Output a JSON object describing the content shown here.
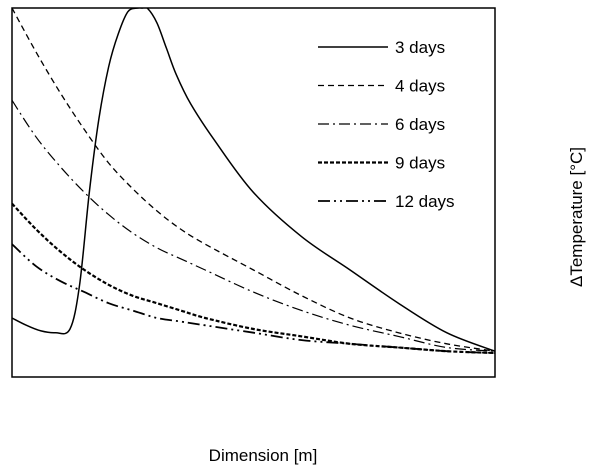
{
  "chart_data": {
    "type": "line",
    "title": "",
    "xlabel": "Dimension [m]",
    "ylabel": "ΔTemperature [°C]",
    "xlim": [
      0,
      1
    ],
    "ylim": [
      0,
      1
    ],
    "grid": false,
    "legend_position": "top-right",
    "colors": {
      "line": "#000000",
      "background": "#ffffff"
    },
    "series": [
      {
        "name": "3 days",
        "dash": "solid",
        "x": [
          0,
          0.03,
          0.06,
          0.09,
          0.12,
          0.14,
          0.16,
          0.18,
          0.2,
          0.22,
          0.24,
          0.26,
          0.27,
          0.28,
          0.3,
          0.32,
          0.34,
          0.37,
          0.42,
          0.5,
          0.6,
          0.7,
          0.8,
          0.9,
          1.0
        ],
        "y": [
          0.16,
          0.14,
          0.125,
          0.12,
          0.13,
          0.25,
          0.5,
          0.7,
          0.84,
          0.93,
          0.99,
          1.0,
          1.0,
          1.0,
          0.96,
          0.89,
          0.82,
          0.74,
          0.64,
          0.5,
          0.38,
          0.29,
          0.2,
          0.12,
          0.07
        ]
      },
      {
        "name": "4 days",
        "dash": "dashed",
        "x": [
          0,
          0.05,
          0.1,
          0.15,
          0.2,
          0.25,
          0.3,
          0.35,
          0.4,
          0.5,
          0.6,
          0.7,
          0.8,
          0.9,
          1.0
        ],
        "y": [
          1.0,
          0.88,
          0.77,
          0.67,
          0.58,
          0.51,
          0.45,
          0.4,
          0.36,
          0.29,
          0.22,
          0.16,
          0.12,
          0.09,
          0.07
        ]
      },
      {
        "name": "6 days",
        "dash": "dash-dot",
        "x": [
          0,
          0.05,
          0.1,
          0.15,
          0.2,
          0.25,
          0.3,
          0.35,
          0.4,
          0.5,
          0.6,
          0.7,
          0.8,
          0.9,
          1.0
        ],
        "y": [
          0.75,
          0.65,
          0.57,
          0.5,
          0.44,
          0.39,
          0.35,
          0.32,
          0.29,
          0.23,
          0.18,
          0.14,
          0.11,
          0.08,
          0.07
        ]
      },
      {
        "name": "9 days",
        "dash": "short-dash",
        "x": [
          0,
          0.05,
          0.1,
          0.15,
          0.2,
          0.25,
          0.3,
          0.35,
          0.4,
          0.5,
          0.6,
          0.7,
          0.8,
          0.9,
          1.0
        ],
        "y": [
          0.47,
          0.4,
          0.34,
          0.29,
          0.25,
          0.22,
          0.2,
          0.18,
          0.16,
          0.13,
          0.11,
          0.09,
          0.08,
          0.07,
          0.065
        ]
      },
      {
        "name": "12 days",
        "dash": "dash-dot-dot",
        "x": [
          0,
          0.05,
          0.1,
          0.15,
          0.2,
          0.25,
          0.3,
          0.35,
          0.4,
          0.5,
          0.6,
          0.7,
          0.8,
          0.9,
          1.0
        ],
        "y": [
          0.36,
          0.3,
          0.26,
          0.23,
          0.2,
          0.18,
          0.16,
          0.15,
          0.14,
          0.12,
          0.1,
          0.09,
          0.08,
          0.07,
          0.065
        ]
      }
    ]
  }
}
